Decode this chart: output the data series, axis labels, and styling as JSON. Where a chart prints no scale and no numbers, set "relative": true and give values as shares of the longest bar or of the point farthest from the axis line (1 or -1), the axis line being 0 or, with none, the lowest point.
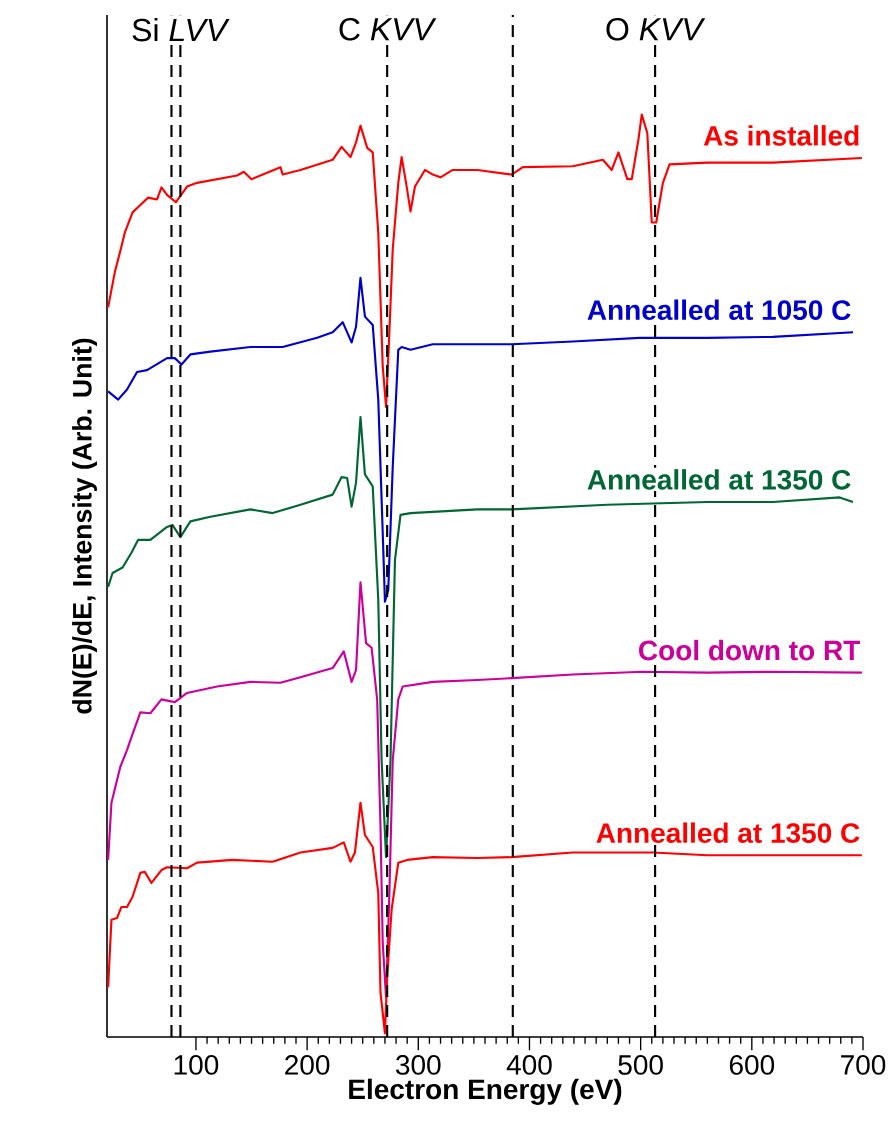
{
  "chart_data": {
    "type": "line",
    "relative": true,
    "xlabel": "Electron Energy (eV)",
    "ylabel": "dN(E)/dE, Intensity (Arb. Unit)",
    "xlim": [
      20,
      700
    ],
    "xticks": [
      100,
      200,
      300,
      400,
      500,
      600,
      700
    ],
    "line_style": "solid",
    "ref_lines": [
      {
        "axis": "x",
        "value": 78,
        "line_style": "dashed",
        "color": "#000000"
      },
      {
        "axis": "x",
        "value": 86,
        "label": "Si *LVV*",
        "line_style": "dashed",
        "color": "#000000"
      },
      {
        "axis": "x",
        "value": 272,
        "label": "C *KVV*",
        "line_style": "dashed",
        "color": "#000000"
      },
      {
        "axis": "x",
        "value": 385,
        "line_style": "dashed",
        "color": "#000000"
      },
      {
        "axis": "x",
        "value": 513,
        "label": "O *KVV*",
        "line_style": "dashed",
        "color": "#000000"
      }
    ],
    "series": [
      {
        "name": "As installed",
        "color": "#ff0000",
        "x": [
          21,
          27,
          33,
          36,
          43,
          50,
          57,
          65,
          69,
          74,
          82,
          92,
          101,
          119,
          137,
          143,
          150,
          164,
          176,
          178,
          194,
          223,
          231,
          239,
          244,
          248,
          254,
          259,
          264,
          268,
          271,
          274,
          277,
          282,
          285,
          289,
          293,
          297,
          306,
          313,
          320,
          331,
          353,
          384,
          394,
          439,
          466,
          474,
          480,
          488,
          492,
          498,
          501,
          506,
          510,
          514,
          520,
          526,
          560,
          619,
          699
        ],
        "values": [
          0.791,
          0.829,
          0.857,
          0.872,
          0.894,
          0.902,
          0.91,
          0.908,
          0.921,
          0.913,
          0.905,
          0.922,
          0.926,
          0.93,
          0.934,
          0.938,
          0.93,
          0.937,
          0.943,
          0.935,
          0.94,
          0.951,
          0.965,
          0.954,
          0.97,
          0.988,
          0.964,
          0.959,
          0.872,
          0.727,
          0.683,
          0.764,
          0.854,
          0.926,
          0.954,
          0.926,
          0.895,
          0.922,
          0.94,
          0.935,
          0.932,
          0.94,
          0.94,
          0.935,
          0.943,
          0.944,
          0.951,
          0.94,
          0.959,
          0.93,
          0.93,
          0.973,
          1.0,
          0.98,
          0.883,
          0.883,
          0.926,
          0.946,
          0.948,
          0.948,
          0.953
        ]
      },
      {
        "name": "Annealled at 1050 C",
        "color": "#0000cc",
        "x": [
          21,
          30,
          38,
          47,
          56,
          74,
          81,
          87,
          95,
          113,
          149,
          178,
          209,
          223,
          232,
          240,
          244,
          248,
          252,
          259,
          264,
          268,
          270,
          273,
          277,
          282,
          285,
          293,
          313,
          353,
          384,
          439,
          499,
          560,
          619,
          691
        ],
        "values": [
          0.7,
          0.691,
          0.702,
          0.721,
          0.723,
          0.736,
          0.736,
          0.729,
          0.74,
          0.743,
          0.748,
          0.748,
          0.758,
          0.764,
          0.775,
          0.753,
          0.77,
          0.823,
          0.781,
          0.772,
          0.691,
          0.547,
          0.472,
          0.485,
          0.618,
          0.745,
          0.748,
          0.745,
          0.751,
          0.751,
          0.751,
          0.754,
          0.758,
          0.758,
          0.759,
          0.764
        ]
      },
      {
        "name": "Annealled at 1350 C",
        "color": "#006633",
        "x": [
          21,
          25,
          34,
          42,
          48,
          59,
          74,
          79,
          86,
          95,
          113,
          149,
          169,
          194,
          223,
          231,
          236,
          240,
          244,
          248,
          252,
          259,
          264,
          267,
          271,
          275,
          279,
          284,
          293,
          353,
          384,
          470,
          560,
          619,
          679,
          691
        ],
        "values": [
          0.488,
          0.503,
          0.509,
          0.525,
          0.539,
          0.539,
          0.553,
          0.555,
          0.542,
          0.559,
          0.564,
          0.572,
          0.568,
          0.577,
          0.588,
          0.607,
          0.606,
          0.575,
          0.601,
          0.672,
          0.61,
          0.597,
          0.474,
          0.3,
          0.195,
          0.3,
          0.517,
          0.566,
          0.568,
          0.572,
          0.572,
          0.577,
          0.58,
          0.58,
          0.585,
          0.58
        ]
      },
      {
        "name": "Cool down to RT",
        "color": "#cc0099",
        "x": [
          21,
          24,
          32,
          38,
          42,
          50,
          59,
          69,
          81,
          92,
          119,
          149,
          176,
          194,
          223,
          233,
          240,
          244,
          248,
          253,
          258,
          263,
          266,
          268,
          271,
          274,
          277,
          282,
          286,
          313,
          353,
          384,
          439,
          502,
          560,
          619,
          699
        ],
        "values": [
          0.192,
          0.254,
          0.293,
          0.311,
          0.325,
          0.352,
          0.351,
          0.366,
          0.363,
          0.373,
          0.38,
          0.385,
          0.384,
          0.39,
          0.4,
          0.418,
          0.385,
          0.398,
          0.493,
          0.427,
          0.422,
          0.366,
          0.228,
          0.102,
          0.043,
          0.156,
          0.3,
          0.366,
          0.38,
          0.385,
          0.387,
          0.389,
          0.393,
          0.396,
          0.395,
          0.396,
          0.395
        ]
      },
      {
        "name": "Annealled at 1350 C",
        "color": "#ff0000",
        "x": [
          21,
          24,
          29,
          33,
          38,
          43,
          50,
          54,
          60,
          69,
          74,
          92,
          101,
          133,
          169,
          194,
          223,
          233,
          239,
          243,
          248,
          252,
          259,
          264,
          266,
          270,
          272,
          276,
          282,
          290,
          313,
          353,
          384,
          439,
          511,
          560,
          619,
          699
        ],
        "values": [
          0.054,
          0.127,
          0.129,
          0.141,
          0.141,
          0.152,
          0.178,
          0.179,
          0.167,
          0.181,
          0.184,
          0.183,
          0.189,
          0.192,
          0.19,
          0.2,
          0.205,
          0.211,
          0.19,
          0.2,
          0.254,
          0.219,
          0.206,
          0.156,
          0.048,
          0.004,
          0.065,
          0.138,
          0.189,
          0.192,
          0.195,
          0.194,
          0.195,
          0.2,
          0.2,
          0.197,
          0.197,
          0.197
        ]
      }
    ]
  }
}
